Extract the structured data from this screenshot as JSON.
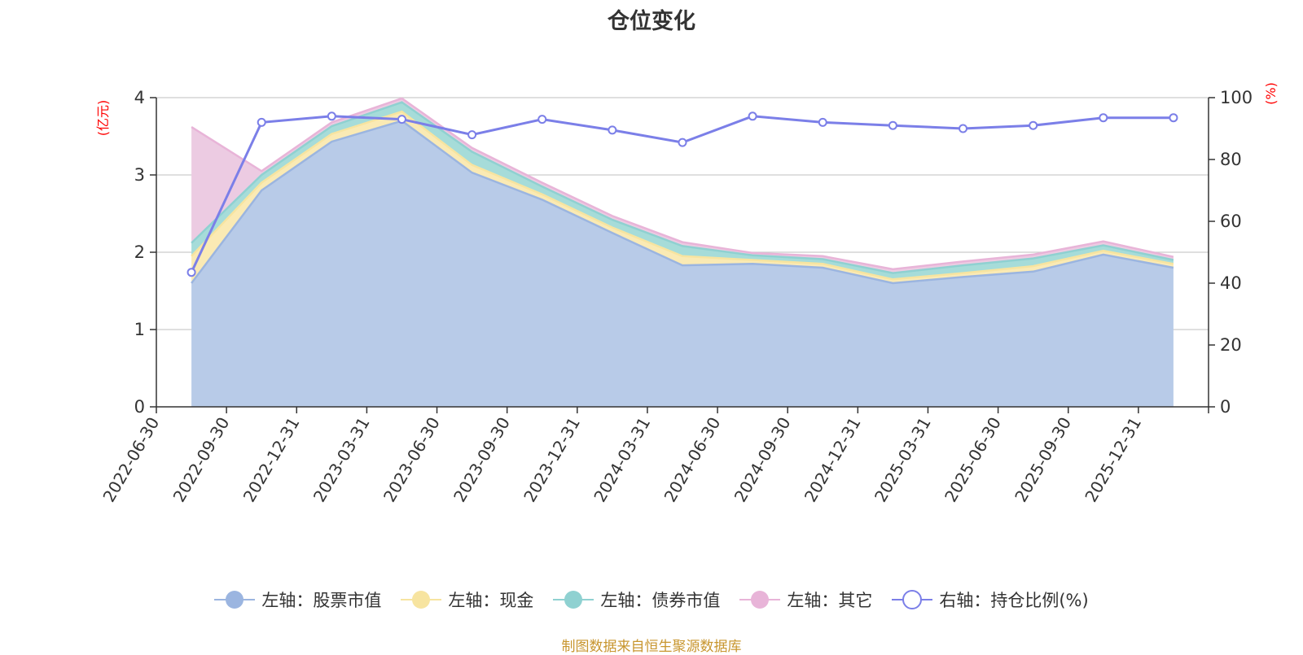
{
  "chart_data": {
    "type": "area",
    "title": "仓位变化",
    "categories": [
      "2022-06-30",
      "2022-09-30",
      "2022-12-31",
      "2023-03-31",
      "2023-06-30",
      "2023-09-30",
      "2023-12-31",
      "2024-03-31",
      "2024-06-30",
      "2024-09-30",
      "2024-12-31",
      "2025-03-31",
      "2025-06-30",
      "2025-09-30",
      "2025-12-31"
    ],
    "left_axis": {
      "name": "(亿元)",
      "ylim": [
        0,
        4
      ],
      "ticks": [
        "0",
        "1",
        "2",
        "3",
        "4"
      ]
    },
    "right_axis": {
      "name": "(%)",
      "ylim": [
        0,
        100
      ],
      "ticks": [
        "0",
        "20",
        "40",
        "60",
        "80",
        "100"
      ]
    },
    "stacked": true,
    "series": [
      {
        "name": "左轴：股票市值",
        "axis": "left",
        "type": "area",
        "color": "#9bb5e0",
        "fill": "#b8cbe8",
        "values": [
          1.6,
          2.8,
          3.43,
          3.7,
          3.03,
          2.68,
          2.25,
          1.83,
          1.85,
          1.8,
          1.6,
          1.68,
          1.75,
          1.97,
          1.8
        ]
      },
      {
        "name": "左轴：现金",
        "axis": "left",
        "type": "area",
        "color": "#f7e4a0",
        "fill": "#faeab4",
        "values": [
          0.35,
          0.1,
          0.1,
          0.12,
          0.1,
          0.07,
          0.07,
          0.12,
          0.05,
          0.05,
          0.05,
          0.05,
          0.07,
          0.05,
          0.05
        ]
      },
      {
        "name": "左轴：债券市值",
        "axis": "left",
        "type": "area",
        "color": "#8fd1d1",
        "fill": "#a6dcd9",
        "values": [
          0.17,
          0.1,
          0.1,
          0.12,
          0.17,
          0.1,
          0.1,
          0.13,
          0.06,
          0.06,
          0.08,
          0.1,
          0.1,
          0.07,
          0.05
        ]
      },
      {
        "name": "左轴：其它",
        "axis": "left",
        "type": "area",
        "color": "#e8b4d8",
        "fill": "#eccbe2",
        "values": [
          1.5,
          0.05,
          0.05,
          0.05,
          0.05,
          0.05,
          0.05,
          0.05,
          0.03,
          0.04,
          0.05,
          0.05,
          0.05,
          0.05,
          0.04
        ]
      },
      {
        "name": "右轴：持仓比例(%)",
        "axis": "right",
        "type": "line",
        "color": "#7b7fe8",
        "values": [
          43.5,
          92.0,
          94.0,
          93.0,
          88.0,
          93.0,
          89.5,
          85.5,
          94.0,
          92.0,
          91.0,
          90.0,
          91.0,
          93.5,
          93.5
        ]
      }
    ],
    "grid": true,
    "legend_position": "bottom"
  },
  "source_note": "制图数据来自恒生聚源数据库"
}
